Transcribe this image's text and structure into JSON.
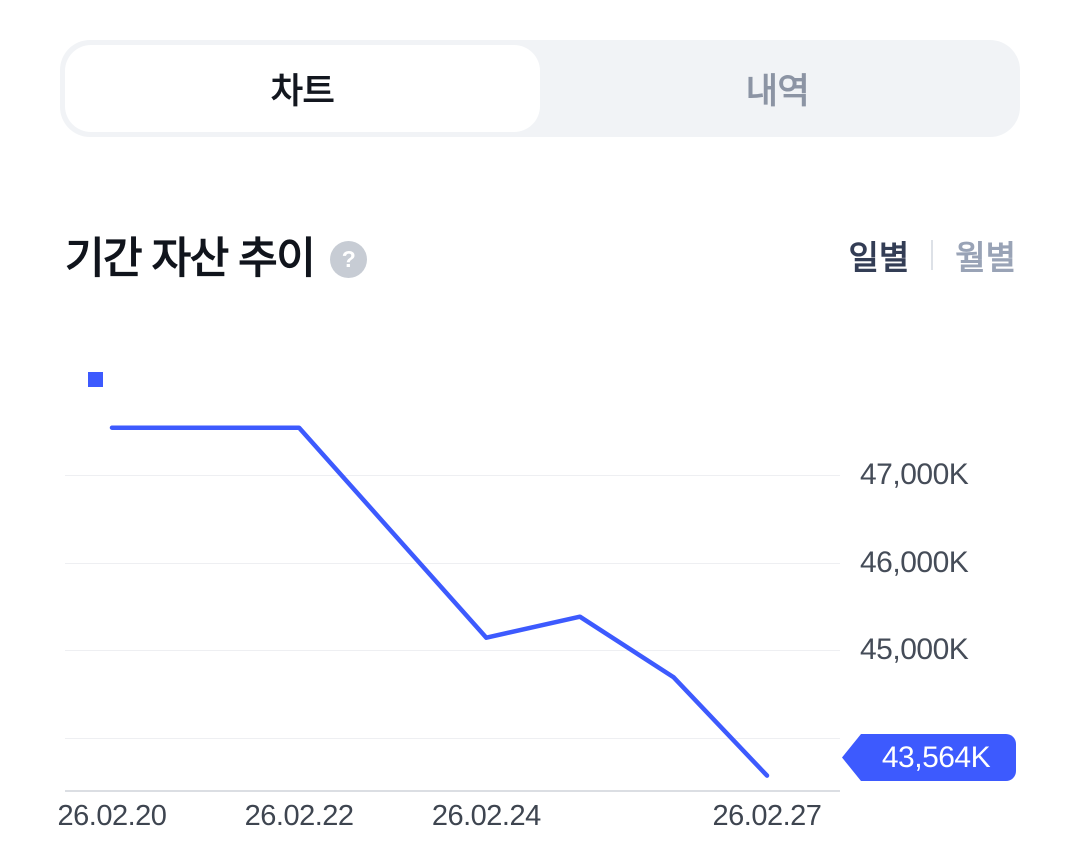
{
  "tabs": {
    "chart": "차트",
    "history": "내역"
  },
  "header": {
    "title": "기간 자산 추이",
    "help_icon": "?",
    "daily": "일별",
    "monthly": "월별"
  },
  "chart_data": {
    "type": "line",
    "title": "기간 자산 추이",
    "unit": "K",
    "x": [
      "26.02.20",
      "26.02.21",
      "26.02.22",
      "26.02.23",
      "26.02.24",
      "26.02.25",
      "26.02.26",
      "26.02.27"
    ],
    "values": [
      47540,
      47540,
      47540,
      46340,
      45140,
      45380,
      44690,
      43564
    ],
    "x_tick_labels": [
      "26.02.20",
      "26.02.22",
      "26.02.24",
      "26.02.27"
    ],
    "x_tick_indices": [
      0,
      2,
      4,
      7
    ],
    "y_gridlines": [
      47000,
      46000,
      45000,
      44000
    ],
    "y_tick_labels": [
      "47,000K",
      "46,000K",
      "45,000K",
      ""
    ],
    "ylim": [
      43400,
      48314
    ],
    "current_value_label": "43,564K",
    "line_color": "#3D5AFE",
    "legend_color": "#3D5AFE",
    "badge_color": "#3D5AFE",
    "grid": true,
    "legend_position": "top-left"
  }
}
